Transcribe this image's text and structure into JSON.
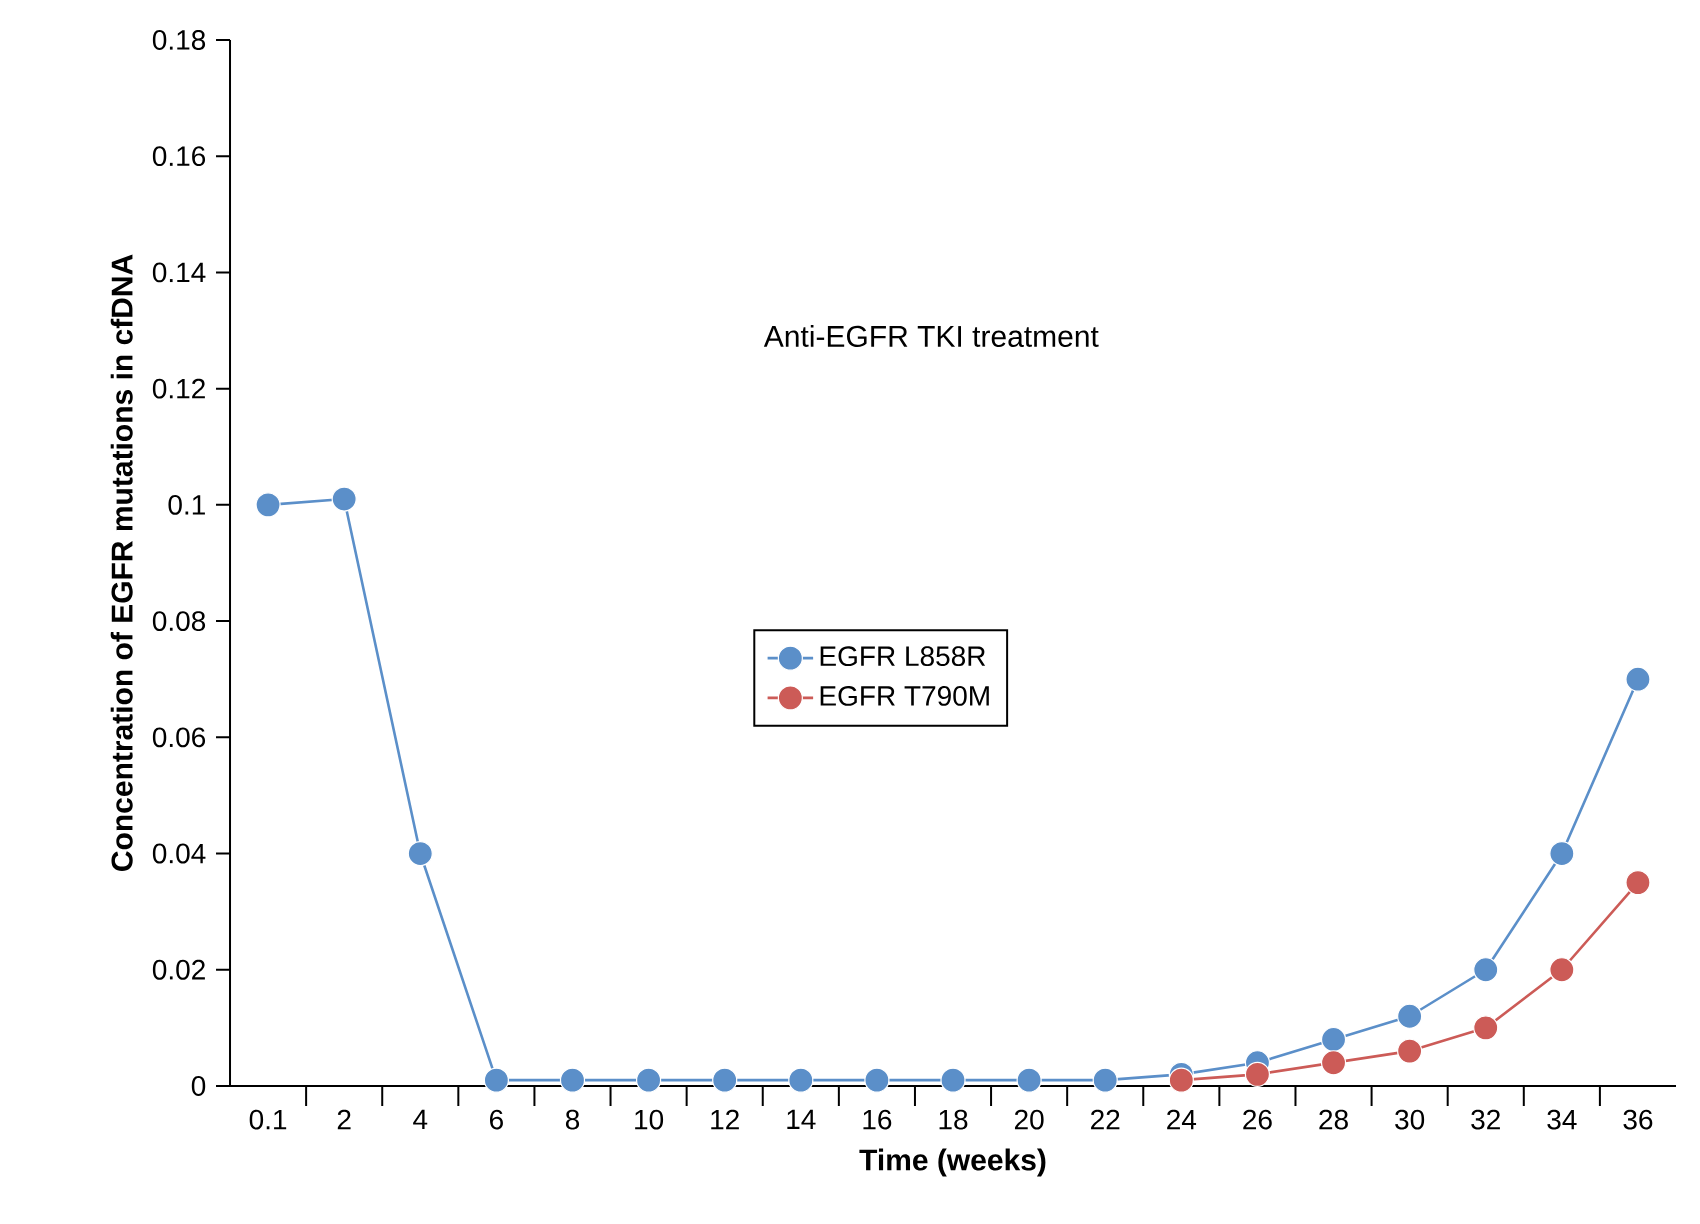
{
  "chart_data": {
    "type": "line",
    "xlabel": "Time (weeks)",
    "ylabel": "Concentration of EGFR mutations in cfDNA",
    "annotations": [
      "Anti-EGFR TKI treatment"
    ],
    "categories": [
      "0.1",
      "2",
      "4",
      "6",
      "8",
      "10",
      "12",
      "14",
      "16",
      "18",
      "20",
      "22",
      "24",
      "26",
      "28",
      "30",
      "32",
      "34",
      "36"
    ],
    "series": [
      {
        "name": "EGFR L858R",
        "color": "#5b8fc9",
        "values": [
          0.1,
          0.101,
          0.04,
          0.001,
          0.001,
          0.001,
          0.001,
          0.001,
          0.001,
          0.001,
          0.001,
          0.001,
          0.002,
          0.004,
          0.008,
          0.012,
          0.02,
          0.04,
          0.07
        ]
      },
      {
        "name": "EGFR T790M",
        "color": "#cc5b57",
        "values": [
          null,
          null,
          null,
          null,
          null,
          null,
          null,
          null,
          null,
          null,
          null,
          null,
          0.001,
          0.002,
          0.004,
          0.006,
          0.01,
          0.02,
          0.035
        ]
      }
    ],
    "ylim": [
      0,
      0.18
    ],
    "yticks": [
      0,
      0.02,
      0.04,
      0.06,
      0.08,
      0.1,
      0.12,
      0.14,
      0.16,
      0.18
    ],
    "grid": false,
    "legend": "center",
    "marker": "circle",
    "line_style": "solid"
  }
}
